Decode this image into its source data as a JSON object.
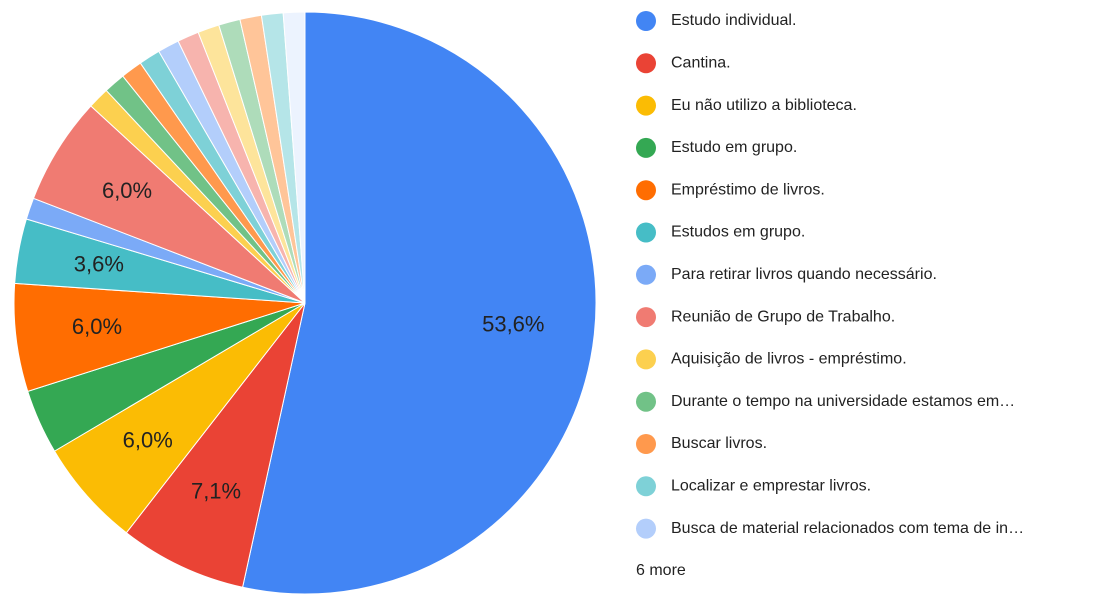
{
  "chart_data": {
    "type": "pie",
    "categories": [
      "Estudo individual.",
      "Cantina.",
      "Eu não utilizo a biblioteca.",
      "Estudo em grupo.",
      "Empréstimo de livros.",
      "Estudos em grupo.",
      "Para retirar livros quando necessário.",
      "Reunião de Grupo de Trabalho.",
      "Aquisição de livros - empréstimo.",
      "Durante o tempo na universidade estamos em…",
      "Buscar livros.",
      "Localizar e emprestar livros.",
      "Busca de material relacionados com tema de in…",
      null,
      null,
      null,
      null,
      null,
      null
    ],
    "values": [
      53.6,
      7.1,
      6.0,
      3.6,
      6.0,
      3.6,
      1.2,
      6.0,
      1.2,
      1.2,
      1.2,
      1.2,
      1.2,
      1.2,
      1.2,
      1.2,
      1.2,
      1.2,
      1.2
    ],
    "value_labels": [
      "53,6%",
      "7,1%",
      "6,0%",
      null,
      "6,0%",
      "3,6%",
      null,
      "6,0%",
      null,
      null,
      null,
      null,
      null,
      null,
      null,
      null,
      null,
      null,
      null
    ],
    "colors": [
      "#4285f4",
      "#ea4335",
      "#fbbc04",
      "#34a853",
      "#ff6d01",
      "#46bdc6",
      "#7baaf7",
      "#f07b72",
      "#fcd04f",
      "#71c287",
      "#ff994d",
      "#7ed1d7",
      "#b3cefb",
      "#f7b4ae",
      "#fde49b",
      "#aedcba",
      "#ffc599",
      "#b5e5e8",
      "#ecf3fe"
    ],
    "legend_more": "6 more"
  }
}
